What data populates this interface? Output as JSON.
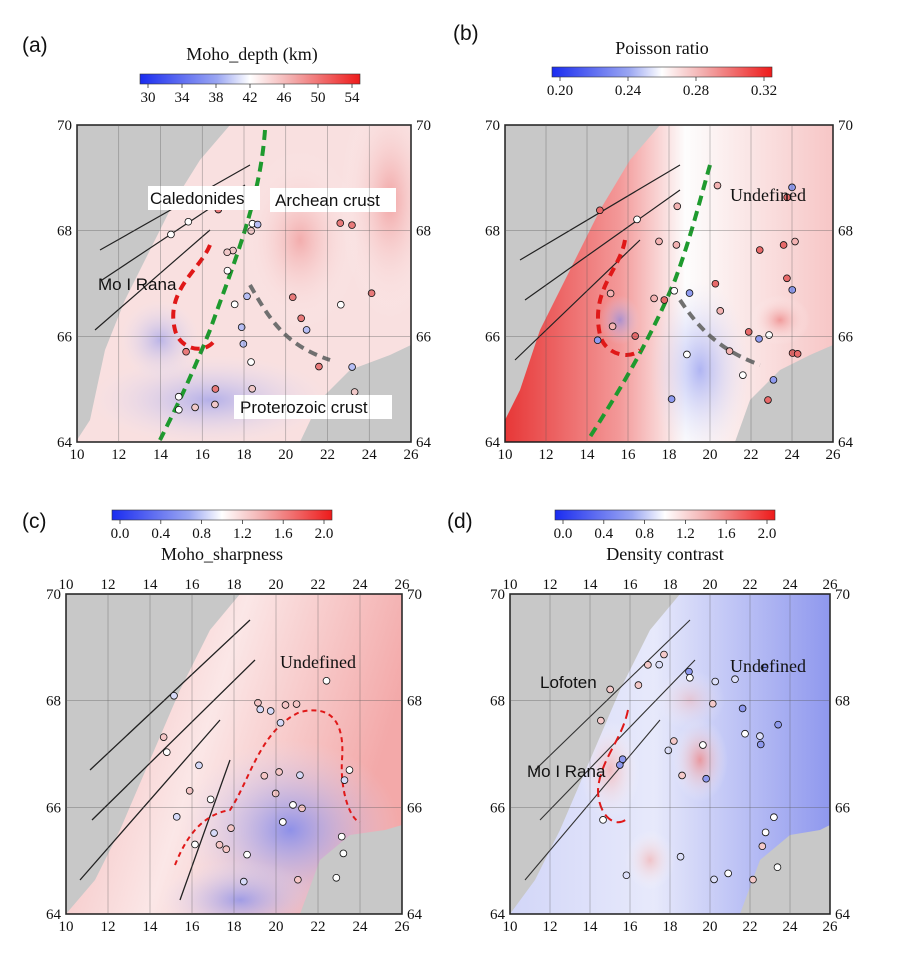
{
  "panels": [
    {
      "label": "(a)",
      "title": "Moho_depth (km)",
      "colorbar_ticks": [
        "30",
        "34",
        "38",
        "42",
        "46",
        "50",
        "54"
      ],
      "annotations": [
        "Caledonides",
        "Archean crust",
        "Mo I Rana",
        "Proterozoic crust"
      ],
      "lat_ticks": [
        "70",
        "68",
        "66",
        "64"
      ],
      "lon_ticks": [
        "10",
        "12",
        "14",
        "16",
        "18",
        "20",
        "22",
        "24",
        "26"
      ]
    },
    {
      "label": "(b)",
      "title": "Poisson ratio",
      "colorbar_ticks": [
        "0.20",
        "0.24",
        "0.28",
        "0.32"
      ],
      "annotations": [
        "Undefined"
      ],
      "lat_ticks": [
        "70",
        "68",
        "66",
        "64"
      ],
      "lon_ticks": [
        "10",
        "12",
        "14",
        "16",
        "18",
        "20",
        "22",
        "24",
        "26"
      ]
    },
    {
      "label": "(c)",
      "title": "Moho_sharpness",
      "colorbar_ticks": [
        "0.0",
        "0.4",
        "0.8",
        "1.2",
        "1.6",
        "2.0"
      ],
      "annotations": [
        "Undefined"
      ],
      "lat_ticks": [
        "70",
        "68",
        "66",
        "64"
      ],
      "lon_ticks": [
        "10",
        "12",
        "14",
        "16",
        "18",
        "20",
        "22",
        "24",
        "26"
      ]
    },
    {
      "label": "(d)",
      "title": "Density contrast",
      "colorbar_ticks": [
        "0.0",
        "0.4",
        "0.8",
        "1.2",
        "1.6",
        "2.0"
      ],
      "annotations": [
        "Lofoten",
        "Undefined",
        "Mo I Rana"
      ],
      "lat_ticks": [
        "70",
        "68",
        "66",
        "64"
      ],
      "lon_ticks": [
        "10",
        "12",
        "14",
        "16",
        "18",
        "20",
        "22",
        "24",
        "26"
      ]
    }
  ],
  "colors": {
    "land_gray": "#c8c8c8",
    "red_high": "#e8262d",
    "blue_low": "#2a3de0",
    "boundary_green": "#1e9a2e",
    "boundary_red": "#e01818",
    "boundary_gray": "#707070"
  },
  "icons": [
    "colorbar",
    "station-marker",
    "boundary-line",
    "coastline"
  ]
}
